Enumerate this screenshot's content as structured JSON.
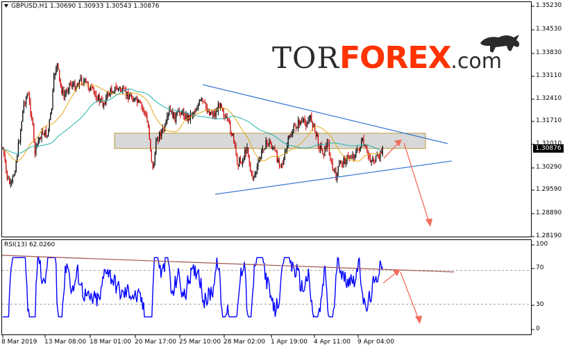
{
  "header": {
    "symbol": "GBPUSD,H1",
    "ohlc": "1.30690 1.30933 1.30543 1.30876"
  },
  "price_axis": {
    "labels": [
      "1.35230",
      "1.34530",
      "1.33830",
      "1.33110",
      "1.32410",
      "1.31710",
      "1.31010",
      "1.30290",
      "1.29590",
      "1.28890",
      "1.28190"
    ],
    "current": "1.30876"
  },
  "rsi": {
    "header": "RSI(13) 62.0260",
    "labels": [
      "100",
      "70",
      "30",
      "0"
    ]
  },
  "time_axis": {
    "labels": [
      "8 Mar 2019",
      "13 Mar 08:00",
      "18 Mar 01:00",
      "20 Mar 17:00",
      "25 Mar 10:00",
      "28 Mar 02:00",
      "1 Apr 19:00",
      "4 Apr 11:00",
      "9 Apr 04:00"
    ]
  },
  "logo": {
    "tor": "TOR",
    "forex": "FOREX",
    "com": ".com"
  },
  "colors": {
    "bull_candle": "#000000",
    "bear_candle": "#cc0000",
    "ma_fast": "#e6a817",
    "ma_slow": "#20b2aa",
    "trendline": "#3a7bd5",
    "arrow": "#f26b5b",
    "rsi_line": "#0000ff",
    "rsi_trend": "#a0524d",
    "zone": "#c8c8c8"
  },
  "icons": {
    "bull": "bull-icon",
    "arrow": "forecast-arrow"
  }
}
